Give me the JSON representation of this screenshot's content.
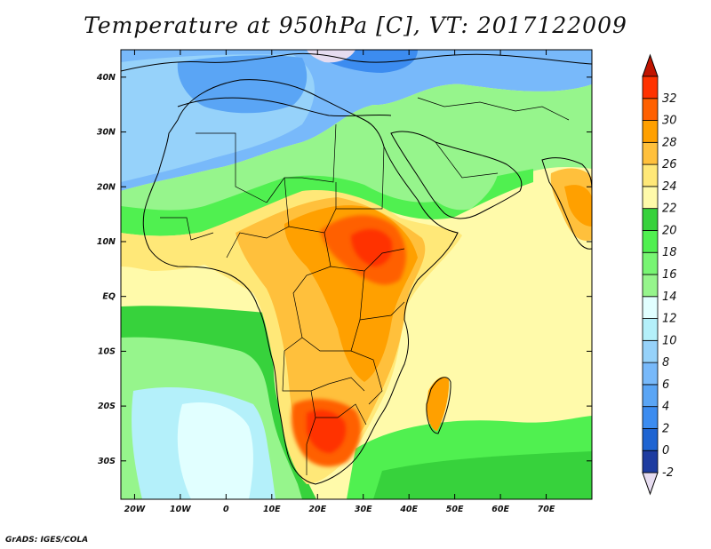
{
  "title": "Temperature at 950hPa [C], VT: 2017122009",
  "footer": "GrADS: IGES/COLA",
  "map": {
    "lon_range": [
      -23,
      80
    ],
    "lat_range": [
      -37,
      45
    ],
    "lon_ticks": [
      {
        "value": -20,
        "label": "20W"
      },
      {
        "value": -10,
        "label": "10W"
      },
      {
        "value": 0,
        "label": "0"
      },
      {
        "value": 10,
        "label": "10E"
      },
      {
        "value": 20,
        "label": "20E"
      },
      {
        "value": 30,
        "label": "30E"
      },
      {
        "value": 40,
        "label": "40E"
      },
      {
        "value": 50,
        "label": "50E"
      },
      {
        "value": 60,
        "label": "60E"
      },
      {
        "value": 70,
        "label": "70E"
      }
    ],
    "lat_ticks": [
      {
        "value": 40,
        "label": "40N"
      },
      {
        "value": 30,
        "label": "30N"
      },
      {
        "value": 20,
        "label": "20N"
      },
      {
        "value": 10,
        "label": "10N"
      },
      {
        "value": 0,
        "label": "EQ"
      },
      {
        "value": -10,
        "label": "10S"
      },
      {
        "value": -20,
        "label": "20S"
      },
      {
        "value": -30,
        "label": "30S"
      }
    ]
  },
  "colorbar": {
    "levels": [
      "-2",
      "0",
      "2",
      "4",
      "6",
      "8",
      "10",
      "12",
      "14",
      "16",
      "18",
      "20",
      "22",
      "24",
      "26",
      "28",
      "30",
      "32"
    ],
    "colors": [
      "#1e3ca0",
      "#1e64d2",
      "#3c8cf0",
      "#5aa5f5",
      "#78b9fa",
      "#96d2fa",
      "#b4f0fa",
      "#e1ffff",
      "#96f58c",
      "#78f573",
      "#50f050",
      "#37d23c",
      "#fffaaa",
      "#ffe878",
      "#ffc03c",
      "#ffa000",
      "#ff6000",
      "#ff3200"
    ],
    "under_color": "#e6dcf0",
    "over_color": "#c01400"
  }
}
